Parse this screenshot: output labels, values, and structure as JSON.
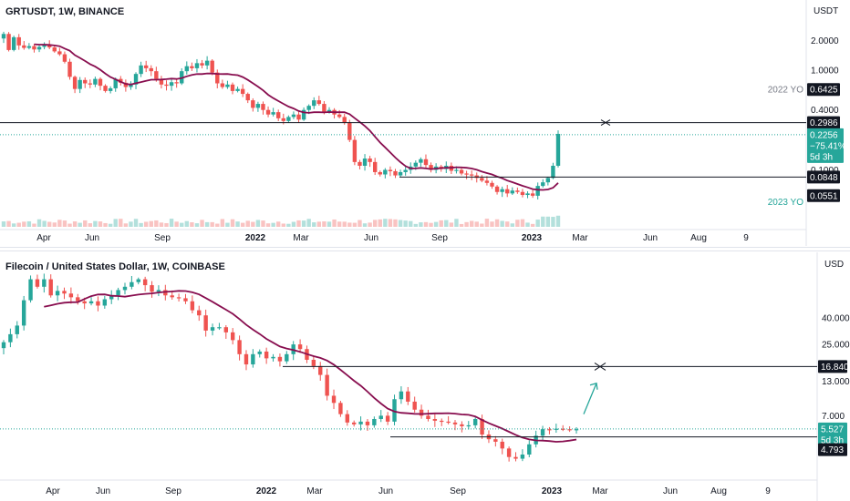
{
  "colors": {
    "up": "#26a69a",
    "down": "#ef5350",
    "ma": "#880e4f",
    "hline": "#131722",
    "axis_bg": "#ffffff",
    "tag_dark": "#131722",
    "tag_teal": "#26a69a",
    "dotted": "#26a69a",
    "arrow": "#26a69a",
    "yo_gray": "#787b86"
  },
  "top_panel": {
    "title": "GRTUSDT, 1W, BINANCE",
    "axis_unit": "USDT",
    "y_ticks": [
      "2.0000",
      "1.0000",
      "0.4000",
      "0.1000"
    ],
    "x_ticks": [
      {
        "label": "Apr",
        "bold": false
      },
      {
        "label": "Jun",
        "bold": false
      },
      {
        "label": "Sep",
        "bold": false
      },
      {
        "label": "2022",
        "bold": true
      },
      {
        "label": "Mar",
        "bold": false
      },
      {
        "label": "Jun",
        "bold": false
      },
      {
        "label": "Sep",
        "bold": false
      },
      {
        "label": "2023",
        "bold": true
      },
      {
        "label": "Mar",
        "bold": false
      },
      {
        "label": "Jun",
        "bold": false
      },
      {
        "label": "Aug",
        "bold": false
      },
      {
        "label": "9",
        "bold": false
      }
    ],
    "label_2022_yo": "2022 YO",
    "value_2022_yo": "0.6425",
    "resistance": "0.2986",
    "last_price": "0.2256",
    "change_pct": "−75.41%",
    "countdown": "5d 3h",
    "support": "0.0848",
    "value_2023_yo": "0.0551",
    "label_2023_yo": "2023 YO"
  },
  "bottom_panel": {
    "title": "Filecoin / United States Dollar, 1W, COINBASE",
    "axis_unit": "USD",
    "y_ticks": [
      "40.000",
      "25.000",
      "13.000",
      "7.000"
    ],
    "x_ticks": [
      {
        "label": "Apr",
        "bold": false
      },
      {
        "label": "Jun",
        "bold": false
      },
      {
        "label": "Sep",
        "bold": false
      },
      {
        "label": "2022",
        "bold": true
      },
      {
        "label": "Mar",
        "bold": false
      },
      {
        "label": "Jun",
        "bold": false
      },
      {
        "label": "Sep",
        "bold": false
      },
      {
        "label": "2023",
        "bold": true
      },
      {
        "label": "Mar",
        "bold": false
      },
      {
        "label": "Jun",
        "bold": false
      },
      {
        "label": "Aug",
        "bold": false
      },
      {
        "label": "9",
        "bold": false
      }
    ],
    "target": "16.840",
    "last_price": "5.527",
    "countdown": "5d 3h",
    "support": "4.793"
  },
  "chart_data": [
    {
      "type": "candlestick",
      "title": "GRTUSDT, 1W, BINANCE",
      "ylabel": "USDT",
      "scale": "log",
      "ylim": [
        0.04,
        3.2
      ],
      "series": [
        {
          "name": "GRTUSDT",
          "close": [
            2.32,
            1.6,
            2.15,
            1.78,
            1.68,
            1.75,
            1.62,
            1.72,
            1.82,
            1.7,
            1.55,
            1.45,
            1.22,
            0.86,
            0.65,
            0.8,
            0.74,
            0.72,
            0.82,
            0.7,
            0.62,
            0.66,
            0.82,
            0.75,
            0.68,
            0.72,
            0.92,
            1.12,
            1.05,
            0.98,
            0.82,
            0.72,
            0.7,
            0.76,
            0.74,
            0.98,
            1.1,
            1.05,
            1.18,
            1.12,
            1.25,
            0.95,
            0.74,
            0.68,
            0.72,
            0.62,
            0.65,
            0.58,
            0.5,
            0.42,
            0.46,
            0.4,
            0.36,
            0.38,
            0.33,
            0.31,
            0.34,
            0.36,
            0.32,
            0.4,
            0.44,
            0.5,
            0.46,
            0.38,
            0.4,
            0.36,
            0.34,
            0.3,
            0.2,
            0.12,
            0.11,
            0.13,
            0.12,
            0.095,
            0.09,
            0.1,
            0.097,
            0.088,
            0.095,
            0.1,
            0.108,
            0.118,
            0.128,
            0.112,
            0.1,
            0.108,
            0.102,
            0.11,
            0.098,
            0.1,
            0.092,
            0.09,
            0.088,
            0.083,
            0.078,
            0.074,
            0.068,
            0.06,
            0.064,
            0.058,
            0.062,
            0.06,
            0.056,
            0.058,
            0.055,
            0.069,
            0.075,
            0.083,
            0.11,
            0.23
          ]
        }
      ]
    },
    {
      "type": "candlestick",
      "title": "Filecoin / United States Dollar, 1W, COINBASE",
      "ylabel": "USD",
      "scale": "log",
      "ylim": [
        3.5,
        110
      ],
      "series": [
        {
          "name": "Filecoin / United States Dollar",
          "close": [
            26,
            30,
            35,
            55,
            80,
            70,
            80,
            60,
            65,
            62,
            58,
            54,
            52,
            54,
            50,
            56,
            60,
            66,
            70,
            76,
            80,
            72,
            64,
            66,
            60,
            58,
            57,
            54,
            46,
            42,
            32,
            34,
            34,
            31,
            27,
            21,
            17.5,
            21,
            22,
            19.5,
            20,
            18.5,
            21,
            25,
            23,
            19,
            17,
            14.5,
            10,
            8.8,
            7.2,
            6.2,
            6.0,
            6.3,
            5.9,
            6.6,
            7.0,
            6.3,
            9.4,
            10.8,
            9.0,
            7.8,
            7.0,
            6.6,
            6.4,
            6.3,
            6.2,
            6.0,
            5.8,
            5.9,
            6.6,
            5.0,
            4.6,
            4.4,
            3.9,
            3.35,
            3.25,
            3.5,
            4.2,
            4.9,
            5.5,
            5.45,
            5.55,
            5.5,
            5.45,
            5.5
          ]
        }
      ]
    }
  ]
}
